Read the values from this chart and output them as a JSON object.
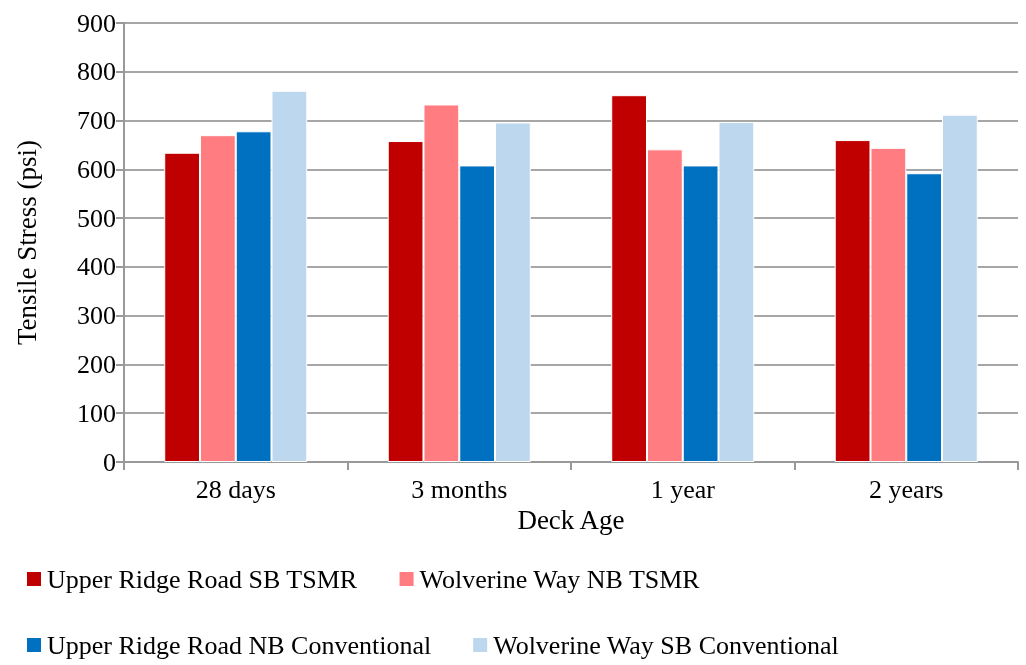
{
  "chart_data": {
    "type": "bar",
    "xlabel": "Deck Age",
    "ylabel": "Tensile Stress (psi)",
    "categories": [
      "28 days",
      "3 months",
      "1 year",
      "2 years"
    ],
    "series": [
      {
        "name": "Upper Ridge Road SB TSMR",
        "color": "#c00000",
        "values": [
          634,
          658,
          752,
          660
        ]
      },
      {
        "name": "Wolverine Way NB TSMR",
        "color": "#ff7c80",
        "values": [
          670,
          733,
          641,
          644
        ]
      },
      {
        "name": "Upper Ridge Road NB Conventional",
        "color": "#0070c0",
        "values": [
          678,
          608,
          608,
          592
        ]
      },
      {
        "name": "Wolverine Way SB Conventional",
        "color": "#bdd7ee",
        "values": [
          761,
          696,
          697,
          712
        ]
      }
    ],
    "ylim": [
      0,
      900
    ],
    "yticks": [
      0,
      100,
      200,
      300,
      400,
      500,
      600,
      700,
      800,
      900
    ],
    "grid": "y",
    "legend": "bottom"
  }
}
